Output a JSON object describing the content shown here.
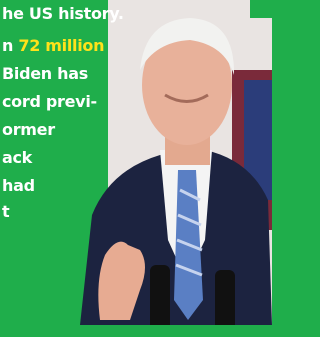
{
  "article": {
    "lines": [
      {
        "text": "he US history."
      },
      {
        "text": "n",
        "highlight": "72 million"
      },
      {
        "text": "Biden has"
      },
      {
        "text": "cord previ-"
      },
      {
        "text": "ormer"
      },
      {
        "text": "ack"
      },
      {
        "text": "had"
      },
      {
        "text": "t"
      }
    ]
  }
}
